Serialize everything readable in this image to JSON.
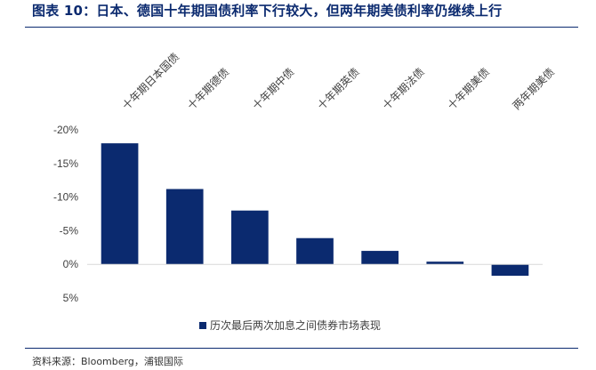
{
  "figure": {
    "title": "图表 10：日本、德国十年期国债利率下行较大，但两年期美债利率仍继续上行",
    "source": "资料来源：Bloomberg，浦银国际"
  },
  "chart_data": {
    "type": "bar",
    "categories": [
      "十年期日本国债",
      "十年期德债",
      "十年期中债",
      "十年期英债",
      "十年期法债",
      "十年期美债",
      "两年期美债"
    ],
    "series": [
      {
        "name": "历次最后两次加息之间债券市场表现",
        "values": [
          -18.0,
          -11.2,
          -8.0,
          -3.9,
          -2.0,
          -0.4,
          1.7
        ]
      }
    ],
    "y_axis": {
      "reversed": true,
      "ylim": [
        -20,
        5
      ],
      "ticks": [
        -20,
        -15,
        -10,
        -5,
        0,
        5
      ],
      "tick_labels": [
        "-20%",
        "-15%",
        "-10%",
        "-5%",
        "0%",
        "5%"
      ]
    },
    "category_axis_position": "top",
    "legend_position": "bottom",
    "grid": false,
    "bar_color": "#0b2a6f"
  }
}
